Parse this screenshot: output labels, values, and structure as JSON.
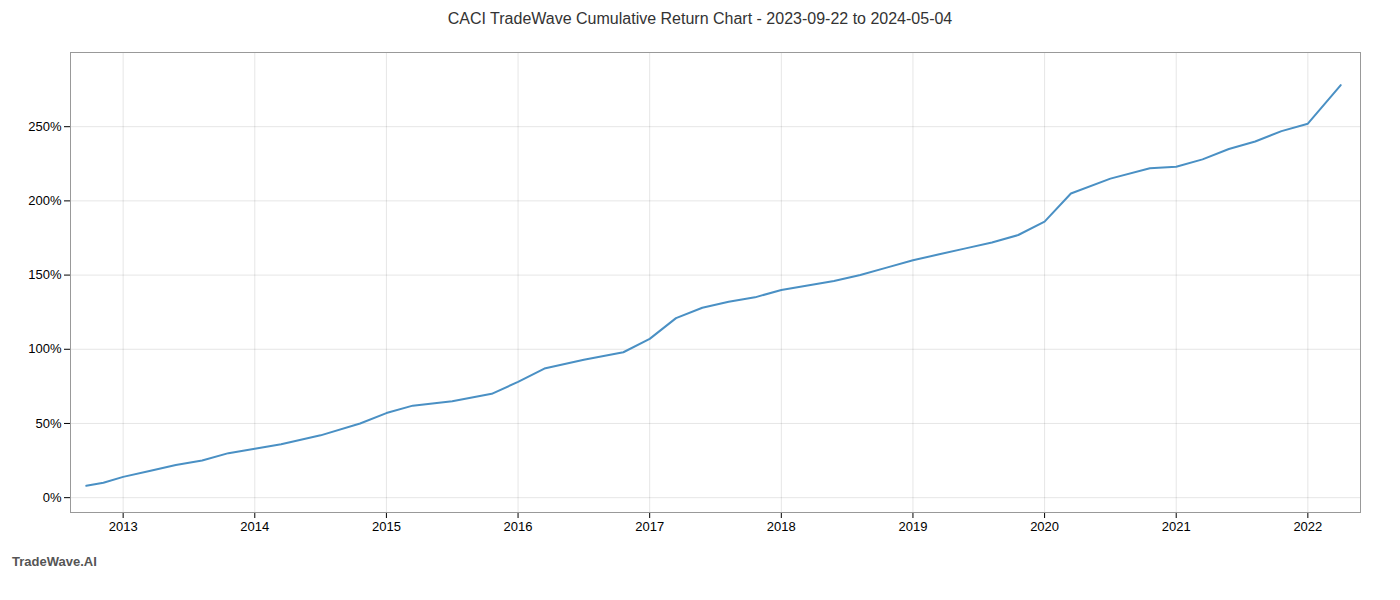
{
  "chart_data": {
    "type": "line",
    "title": "CACI TradeWave Cumulative Return Chart - 2023-09-22 to 2024-05-04",
    "annotations": [
      "TradeWave.AI"
    ],
    "x": [
      2012.72,
      2012.85,
      2013.0,
      2013.2,
      2013.4,
      2013.6,
      2013.8,
      2014.0,
      2014.2,
      2014.5,
      2014.8,
      2015.0,
      2015.2,
      2015.5,
      2015.8,
      2016.0,
      2016.2,
      2016.5,
      2016.8,
      2017.0,
      2017.2,
      2017.4,
      2017.6,
      2017.8,
      2018.0,
      2018.2,
      2018.4,
      2018.6,
      2018.8,
      2019.0,
      2019.2,
      2019.4,
      2019.6,
      2019.8,
      2020.0,
      2020.2,
      2020.5,
      2020.8,
      2021.0,
      2021.2,
      2021.4,
      2021.6,
      2021.8,
      2022.0,
      2022.25
    ],
    "values": [
      8,
      10,
      14,
      18,
      22,
      25,
      30,
      33,
      36,
      42,
      50,
      57,
      62,
      65,
      70,
      78,
      87,
      93,
      98,
      107,
      121,
      128,
      132,
      135,
      140,
      143,
      146,
      150,
      155,
      160,
      164,
      168,
      172,
      177,
      186,
      205,
      215,
      222,
      223,
      228,
      235,
      240,
      247,
      252,
      278
    ],
    "color": "#4a90c4",
    "xlim": [
      2012.6,
      2022.4
    ],
    "ylim": [
      -10,
      300
    ],
    "xticks": [
      2013,
      2014,
      2015,
      2016,
      2017,
      2018,
      2019,
      2020,
      2021,
      2022
    ],
    "yticks": [
      {
        "value": 0,
        "label": "0%"
      },
      {
        "value": 50,
        "label": "50%"
      },
      {
        "value": 100,
        "label": "100%"
      },
      {
        "value": 150,
        "label": "150%"
      },
      {
        "value": 200,
        "label": "200%"
      },
      {
        "value": 250,
        "label": "250%"
      }
    ],
    "grid": true
  }
}
